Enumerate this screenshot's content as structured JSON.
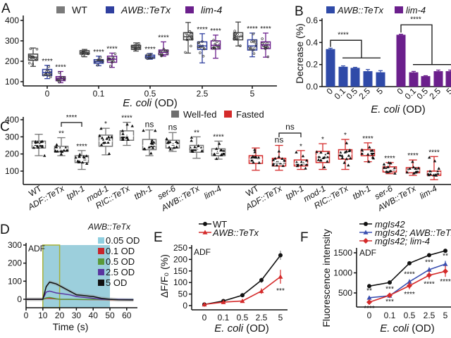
{
  "panel_labels": [
    "A",
    "B",
    "C",
    "D",
    "E",
    "F"
  ],
  "chart_data": [
    {
      "panel": "A",
      "type": "box",
      "legend": [
        {
          "name": "WT",
          "color": "#7a7a7a"
        },
        {
          "name": "AWB::TeTx",
          "color": "#2f3f9f"
        },
        {
          "name": "lim-4",
          "color": "#6b1f8c"
        }
      ],
      "categories": [
        "0",
        "0.1",
        "0.5",
        "2.5",
        "5"
      ],
      "xlabel_italic": "E. coli",
      "xlabel_suffix": " (OD)",
      "yticks": [
        "100",
        "200",
        "300",
        "400"
      ],
      "ylim": [
        90,
        410
      ],
      "series": [
        {
          "name": "WT",
          "boxes": [
            [
              175,
              205,
              220,
              235,
              265
            ],
            [
              222,
              235,
              243,
              252,
              258
            ],
            [
              250,
              258,
              268,
              278,
              290
            ],
            [
              240,
              305,
              320,
              340,
              390
            ],
            [
              275,
              305,
              320,
              340,
              392
            ]
          ],
          "stars": [
            "",
            "",
            "",
            "",
            ""
          ]
        },
        {
          "name": "AWB::TeTx",
          "boxes": [
            [
              115,
              130,
              145,
              160,
              180
            ],
            [
              178,
              190,
              198,
              208,
              225
            ],
            [
              210,
              215,
              222,
              230,
              238
            ],
            [
              192,
              258,
              275,
              295,
              335
            ],
            [
              222,
              255,
              275,
              305,
              338
            ]
          ],
          "stars": [
            "****",
            "****",
            "****",
            "****",
            "****"
          ]
        },
        {
          "name": "lim-4",
          "boxes": [
            [
              95,
              105,
              115,
              125,
              150
            ],
            [
              170,
              195,
              210,
              225,
              240
            ],
            [
              225,
              232,
              243,
              255,
              295
            ],
            [
              215,
              260,
              278,
              300,
              328
            ],
            [
              220,
              262,
              280,
              295,
              338
            ]
          ],
          "stars": [
            "****",
            "****",
            "****",
            "****",
            "****"
          ]
        }
      ]
    },
    {
      "panel": "B",
      "type": "bar",
      "legend": [
        {
          "name": "AWB::TeTx",
          "color": "#2f4aa8"
        },
        {
          "name": "lim-4",
          "color": "#6b1f8c"
        }
      ],
      "categories": [
        "0",
        "0.1",
        "0.5",
        "2.5",
        "5"
      ],
      "ylabel": "Decrease (%)",
      "xlabel_italic": "E. coli",
      "xlabel_suffix": " (OD)",
      "yticks": [
        "0.0",
        "0.2",
        "0.4",
        "0.6"
      ],
      "ylim": [
        0,
        0.6
      ],
      "series": [
        {
          "name": "AWB::TeTx",
          "values": [
            0.34,
            0.18,
            0.17,
            0.14,
            0.13
          ],
          "errors": [
            0.008,
            0.008,
            0.005,
            0.015,
            0.015
          ]
        },
        {
          "name": "lim-4",
          "values": [
            0.47,
            0.13,
            0.095,
            0.14,
            0.14
          ],
          "errors": [
            0.005,
            0.008,
            0.004,
            0.01,
            0.01
          ]
        }
      ],
      "annotations": [
        "****",
        "****"
      ]
    },
    {
      "panel": "C",
      "type": "box",
      "legend": [
        {
          "name": "Well-fed",
          "color": "#6e6e6e"
        },
        {
          "name": "Fasted",
          "color": "#d42a2a"
        }
      ],
      "categories": [
        "WT",
        "ADF::TeTx",
        "tph-1",
        "mod-1",
        "RIC::TeTx",
        "tbh-1",
        "ser-6",
        "AWB::TeTx",
        "lim-4"
      ],
      "yticks": [
        "100",
        "200",
        "300",
        "400"
      ],
      "ylim": [
        20,
        400
      ],
      "series": [
        {
          "name": "Well-fed",
          "boxes": [
            [
              190,
              235,
              255,
              275,
              315
            ],
            [
              190,
              215,
              230,
              245,
              295
            ],
            [
              110,
              150,
              170,
              190,
              220
            ],
            [
              195,
              245,
              275,
              310,
              350
            ],
            [
              250,
              280,
              305,
              335,
              385
            ],
            [
              190,
              225,
              250,
              285,
              340
            ],
            [
              215,
              235,
              255,
              280,
              325
            ],
            [
              175,
              210,
              230,
              250,
              300
            ],
            [
              170,
              190,
              210,
              230,
              275
            ]
          ],
          "stars": [
            "",
            "**",
            "****",
            "*",
            "****",
            "ns",
            "ns",
            "**",
            "****"
          ]
        },
        {
          "name": "Fasted",
          "boxes": [
            [
              105,
              145,
              170,
              190,
              235
            ],
            [
              105,
              130,
              150,
              175,
              250
            ],
            [
              110,
              130,
              145,
              165,
              220
            ],
            [
              110,
              150,
              190,
              215,
              260
            ],
            [
              110,
              170,
              200,
              225,
              285
            ],
            [
              155,
              190,
              210,
              225,
              265
            ],
            [
              85,
              95,
              110,
              125,
              150
            ],
            [
              75,
              90,
              105,
              120,
              165
            ],
            [
              50,
              75,
              90,
              100,
              185
            ]
          ],
          "stars": [
            "",
            "ns",
            "*",
            "*",
            "*",
            "****",
            "****",
            "****",
            "****"
          ]
        }
      ],
      "brackets": [
        {
          "group": "Well-fed",
          "from": "ADF::TeTx",
          "to": "tph-1",
          "label": "****"
        },
        {
          "group": "Fasted",
          "from": "ADF::TeTx",
          "to": "tph-1",
          "label": "ns"
        }
      ]
    },
    {
      "panel": "D",
      "type": "line",
      "legend_title": "AWB::TeTx",
      "annotation": "ADF",
      "xlabel": "Time (s)",
      "xticks": [
        "0",
        "10",
        "20",
        "30",
        "40",
        "50",
        "60"
      ],
      "yticks": [
        "0",
        "100",
        "200",
        "300"
      ],
      "xlim": [
        0,
        65
      ],
      "ylim": [
        -20,
        300
      ],
      "stimulus_window_s": [
        10,
        50
      ],
      "highlight_window_s": [
        10,
        20
      ],
      "stimulus_color": "#9ccfdc",
      "series": [
        {
          "name": "0.05 OD",
          "color": "#8fcfe0",
          "points": [
            [
              0,
              0
            ],
            [
              10,
              0
            ],
            [
              20,
              0
            ],
            [
              40,
              0
            ],
            [
              64,
              0
            ]
          ]
        },
        {
          "name": "0.1 OD",
          "color": "#c8252b",
          "points": [
            [
              0,
              0
            ],
            [
              10,
              0
            ],
            [
              12,
              5
            ],
            [
              14,
              5
            ],
            [
              20,
              0
            ],
            [
              40,
              -2
            ],
            [
              64,
              -3
            ]
          ]
        },
        {
          "name": "0.5 OD",
          "color": "#5a9a3a",
          "points": [
            [
              0,
              0
            ],
            [
              10,
              0
            ],
            [
              12,
              8
            ],
            [
              14,
              10
            ],
            [
              18,
              3
            ],
            [
              20,
              0
            ],
            [
              64,
              -2
            ]
          ]
        },
        {
          "name": "2.5 OD",
          "color": "#5a35a0",
          "points": [
            [
              0,
              0
            ],
            [
              10,
              0
            ],
            [
              12,
              40
            ],
            [
              14,
              45
            ],
            [
              18,
              35
            ],
            [
              22,
              30
            ],
            [
              26,
              25
            ],
            [
              30,
              15
            ],
            [
              35,
              10
            ],
            [
              40,
              5
            ],
            [
              45,
              0
            ],
            [
              64,
              -2
            ]
          ]
        },
        {
          "name": "5 OD",
          "color": "#111111",
          "points": [
            [
              0,
              0
            ],
            [
              10,
              0
            ],
            [
              12,
              70
            ],
            [
              14,
              95
            ],
            [
              16,
              90
            ],
            [
              18,
              85
            ],
            [
              20,
              75
            ],
            [
              22,
              65
            ],
            [
              24,
              55
            ],
            [
              26,
              45
            ],
            [
              28,
              35
            ],
            [
              30,
              25
            ],
            [
              35,
              20
            ],
            [
              40,
              15
            ],
            [
              45,
              5
            ],
            [
              50,
              0
            ],
            [
              55,
              -3
            ],
            [
              64,
              -4
            ]
          ]
        }
      ]
    },
    {
      "panel": "E",
      "type": "line",
      "annotation": "ADF",
      "ylabel": "ΔF/F₀ (%)",
      "xlabel_italic": "E. coli",
      "xlabel_suffix": " (OD)",
      "categories": [
        "0",
        "0.1",
        "0.5",
        "2.5",
        "5"
      ],
      "yticks": [
        "0",
        "50",
        "100",
        "150",
        "200",
        "250"
      ],
      "ylim": [
        0,
        250
      ],
      "series": [
        {
          "name": "WT",
          "color": "#111111",
          "marker": "circle",
          "values": [
            5,
            20,
            45,
            110,
            218
          ],
          "errors": [
            3,
            5,
            5,
            12,
            20
          ]
        },
        {
          "name": "AWB::TeTx",
          "color": "#d42a2a",
          "marker": "triangle",
          "values": [
            5,
            15,
            20,
            63,
            125
          ],
          "errors": [
            3,
            5,
            7,
            12,
            30
          ]
        }
      ],
      "stars": [
        "",
        "",
        "",
        "",
        "***"
      ]
    },
    {
      "panel": "F",
      "type": "line",
      "annotation": "ADF",
      "ylabel": "Fluorescence intensity",
      "xlabel_italic": "E. coli",
      "xlabel_suffix": " (OD)",
      "categories": [
        "0",
        "0.1",
        "0.5",
        "2.5",
        "5"
      ],
      "yticks": [
        "500",
        "1000",
        "1500"
      ],
      "ylim": [
        200,
        1650
      ],
      "series": [
        {
          "name": "mgIs42",
          "color": "#111111",
          "marker": "circle",
          "values": [
            670,
            760,
            1240,
            1440,
            1550
          ],
          "errors": [
            20,
            25,
            40,
            40,
            45
          ],
          "stars": [
            "",
            "",
            "",
            "",
            ""
          ]
        },
        {
          "name": "mgIs42; AWB::TeTx",
          "color": "#3a4fb0",
          "marker": "triangle",
          "values": [
            380,
            430,
            780,
            1080,
            1220
          ],
          "errors": [
            50,
            40,
            60,
            60,
            80
          ],
          "stars": [
            "**",
            "***",
            "****",
            "***",
            "**"
          ]
        },
        {
          "name": "mgIs42; lim-4",
          "color": "#d42a2a",
          "marker": "diamond",
          "values": [
            270,
            440,
            680,
            940,
            1040
          ],
          "errors": [
            30,
            40,
            90,
            100,
            140
          ],
          "stars": [
            "****",
            "***",
            "****",
            "****",
            "****"
          ]
        }
      ]
    }
  ]
}
